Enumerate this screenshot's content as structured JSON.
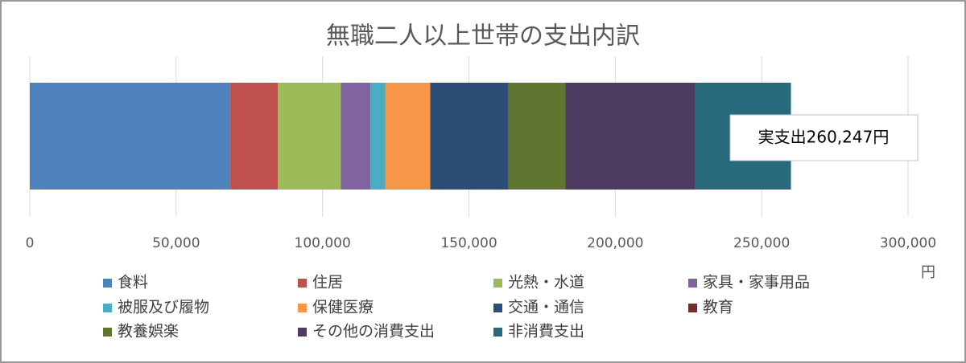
{
  "chart_data": {
    "type": "stacked-barh",
    "title": "無職二人以上世帯の支出内訳",
    "x_label": "円",
    "annotation": "実支出260,247円",
    "series": [
      {
        "name": "食料",
        "color": "#4f81bd",
        "values": [
          68500
        ]
      },
      {
        "name": "住居",
        "color": "#c0504d",
        "values": [
          16200
        ]
      },
      {
        "name": "光熱・水道",
        "color": "#9bbb59",
        "values": [
          21500
        ]
      },
      {
        "name": "家具・家事用品",
        "color": "#8064a2",
        "values": [
          10200
        ]
      },
      {
        "name": "被服及び履物",
        "color": "#4bacc6",
        "values": [
          5000
        ]
      },
      {
        "name": "保健医療",
        "color": "#f79646",
        "values": [
          15400
        ]
      },
      {
        "name": "交通・通信",
        "color": "#2c4d75",
        "values": [
          26700
        ]
      },
      {
        "name": "教育",
        "color": "#772c2a",
        "values": [
          0
        ]
      },
      {
        "name": "教養娯楽",
        "color": "#5f7530",
        "values": [
          19500
        ]
      },
      {
        "name": "その他の消費支出",
        "color": "#4d3b62",
        "values": [
          44300
        ]
      },
      {
        "name": "非消費支出",
        "color": "#276a7c",
        "values": [
          32700
        ]
      }
    ],
    "xlim": [
      0,
      300000
    ],
    "xticks": [
      0,
      {
        "value": 50000,
        "label": "50,000"
      },
      {
        "value": 100000,
        "label": "100,000"
      },
      {
        "value": 150000,
        "label": "150,000"
      },
      {
        "value": 200000,
        "label": "200,000"
      },
      {
        "value": 250000,
        "label": "250,000"
      },
      {
        "value": 300000,
        "label": "300,000"
      }
    ],
    "grid": true
  }
}
